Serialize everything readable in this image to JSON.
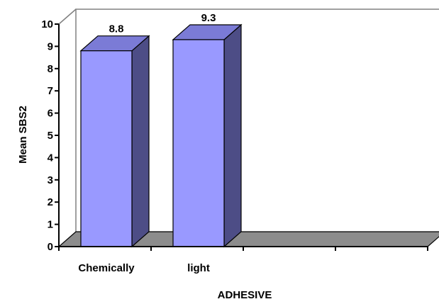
{
  "chart_data": {
    "type": "bar",
    "categories": [
      "Chemically",
      "light"
    ],
    "values": [
      8.8,
      9.3
    ],
    "data_labels": [
      "8.8",
      "9.3"
    ],
    "xlabel": "ADHESIVE",
    "ylabel": "Mean SBS2",
    "ylim": [
      0,
      10
    ],
    "yticks": [
      "0",
      "1",
      "2",
      "3",
      "4",
      "5",
      "6",
      "7",
      "8",
      "9",
      "10"
    ],
    "grid": false,
    "legend": "none",
    "style": "3d",
    "slot_count": 4
  },
  "colors": {
    "bar_front": "#9999ff",
    "bar_side": "#4d4d86",
    "bar_top": "#7b7bd6",
    "floor": "#8c8c8c",
    "wall_line": "#808080",
    "axis": "#000000"
  }
}
